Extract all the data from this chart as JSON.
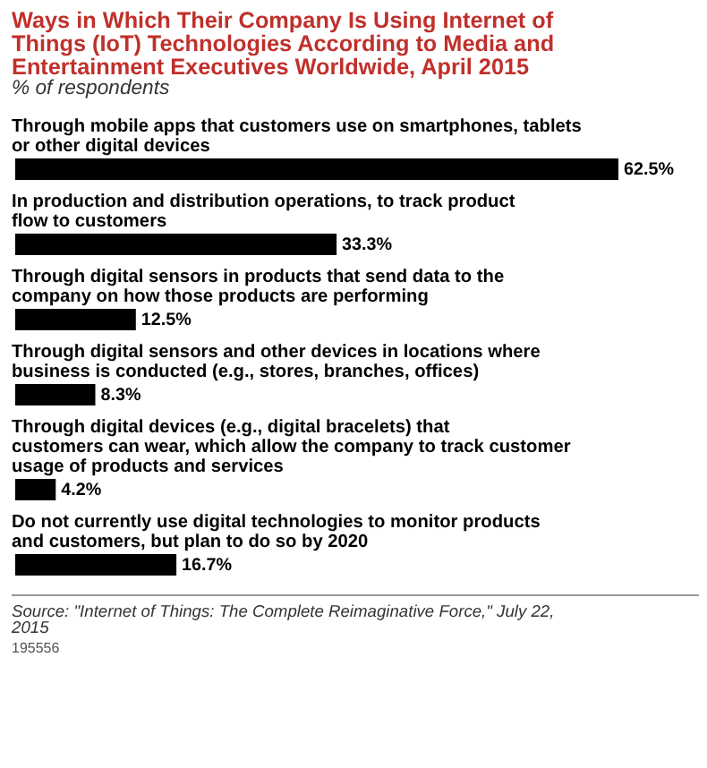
{
  "chart_data": {
    "type": "bar",
    "orientation": "horizontal",
    "title": "Ways in Which Their Company Is Using Internet of Things (IoT) Technologies According to Media and Entertainment Executives Worldwide, April 2015",
    "subtitle": "% of respondents",
    "categories": [
      "Through mobile apps that customers use on smartphones, tablets or other digital devices",
      "In production and distribution operations, to track product flow to customers",
      "Through digital sensors in products that send data to the company on how those products are performing",
      "Through digital sensors and other devices in locations where business is conducted (e.g., stores, branches, offices)",
      "Through digital devices (e.g., digital bracelets) that customers can wear, which allow the company to track customer usage of products and services",
      "Do not currently use digital technologies to monitor products and customers, but plan to do so by 2020"
    ],
    "values": [
      62.5,
      33.3,
      12.5,
      8.3,
      4.2,
      16.7
    ],
    "value_labels": [
      "62.5%",
      "33.3%",
      "12.5%",
      "8.3%",
      "4.2%",
      "16.7%"
    ],
    "color": "#000000",
    "annotations": [
      "Source: \"Internet of Things: The Complete Reimaginative Force,\" July 22, 2015",
      "195556"
    ]
  }
}
